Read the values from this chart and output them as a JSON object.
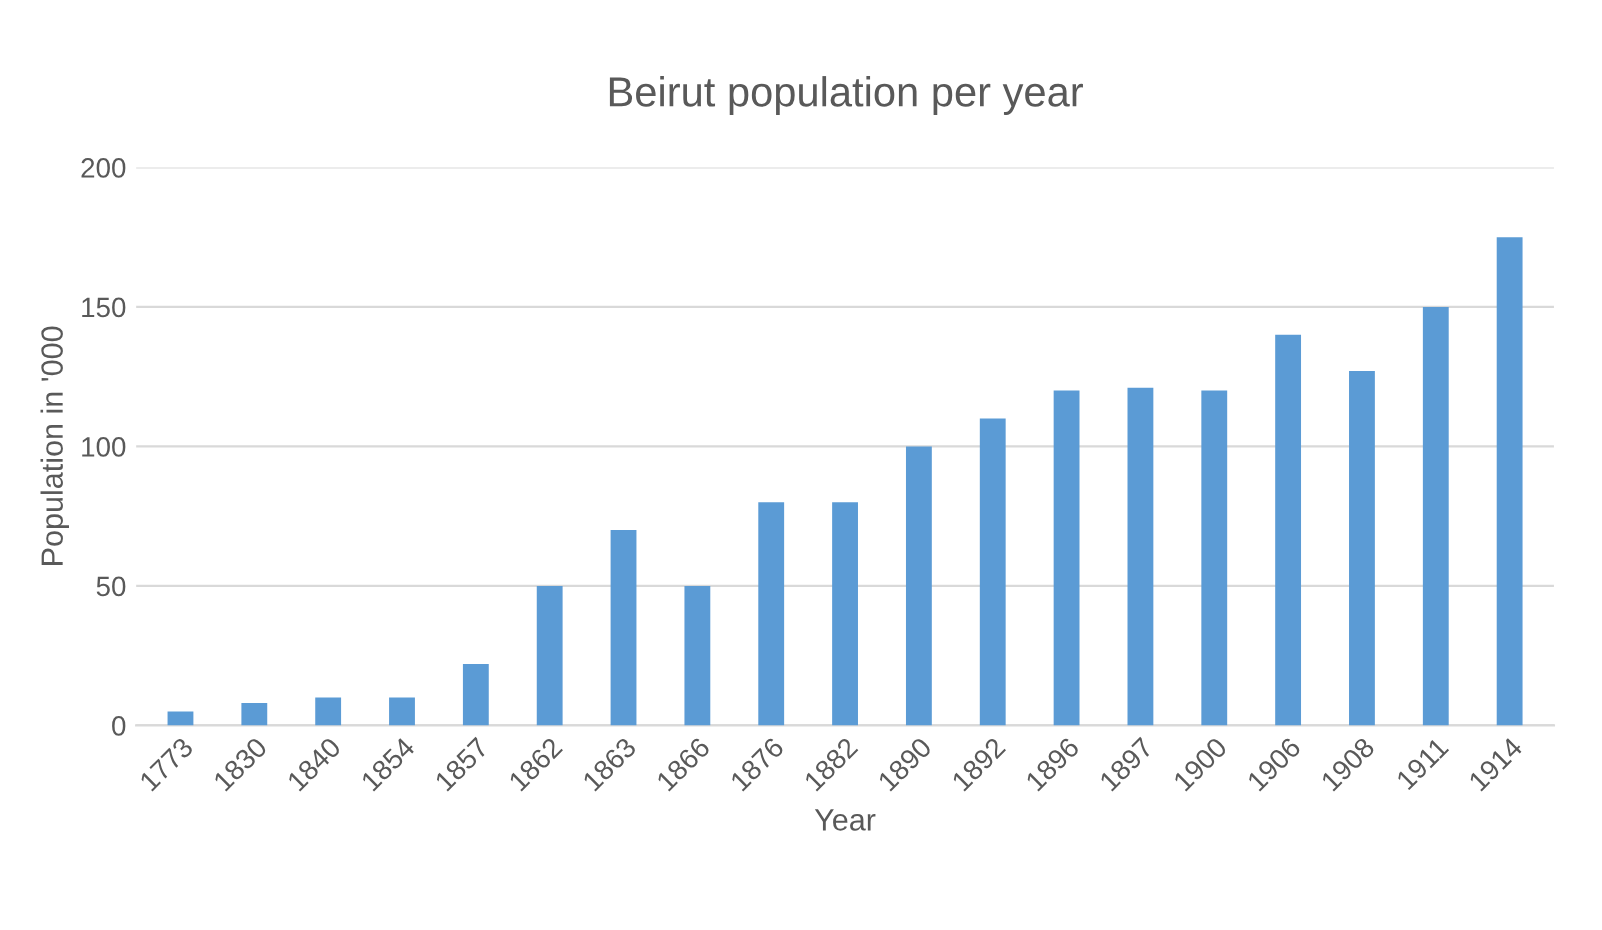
{
  "chart_data": {
    "type": "bar",
    "title": "Beirut population per year",
    "xlabel": "Year",
    "ylabel": "Population in '000",
    "categories": [
      "1773",
      "1830",
      "1840",
      "1854",
      "1857",
      "1862",
      "1863",
      "1866",
      "1876",
      "1882",
      "1890",
      "1892",
      "1896",
      "1897",
      "1900",
      "1906",
      "1908",
      "1911",
      "1914"
    ],
    "values": [
      5,
      8,
      10,
      10,
      22,
      50,
      70,
      50,
      80,
      80,
      100,
      110,
      120,
      121,
      120,
      140,
      127,
      150,
      175
    ],
    "color": "#5b9bd5",
    "ylim": [
      0,
      200
    ],
    "yticks": [
      0,
      50,
      100,
      150,
      200
    ],
    "grid": "y"
  }
}
